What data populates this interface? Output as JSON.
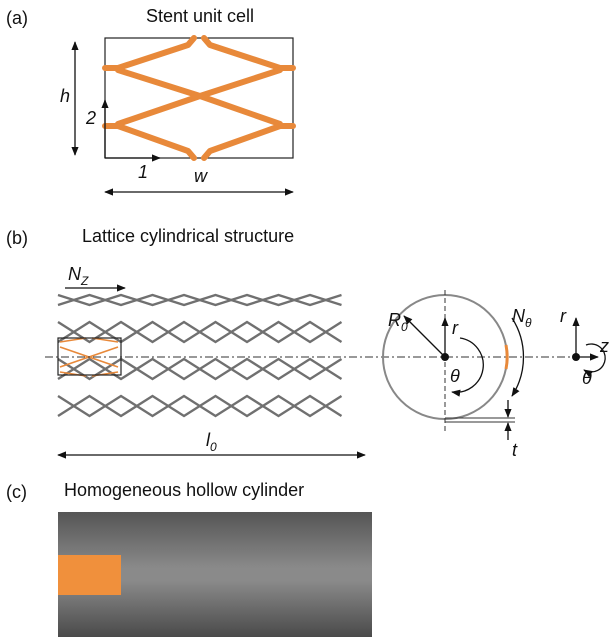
{
  "panel_a": {
    "label": "(a)",
    "title": "Stent unit cell",
    "h": "h",
    "axis_2": "2",
    "axis_1": "1",
    "w": "w"
  },
  "panel_b": {
    "label": "(b)",
    "title": "Lattice cylindrical structure",
    "n_z": {
      "main": "N",
      "sub": "Z"
    },
    "l_0": {
      "main": "l",
      "sub": "0"
    },
    "r_0": {
      "main": "R",
      "sub": "0"
    },
    "r": "r",
    "n_theta": {
      "main": "N",
      "sub": "θ"
    },
    "theta": "θ",
    "t": "t",
    "axes": {
      "r": "r",
      "z": "z",
      "theta": "θ"
    }
  },
  "panel_c": {
    "label": "(c)",
    "title": "Homogeneous hollow cylinder"
  }
}
